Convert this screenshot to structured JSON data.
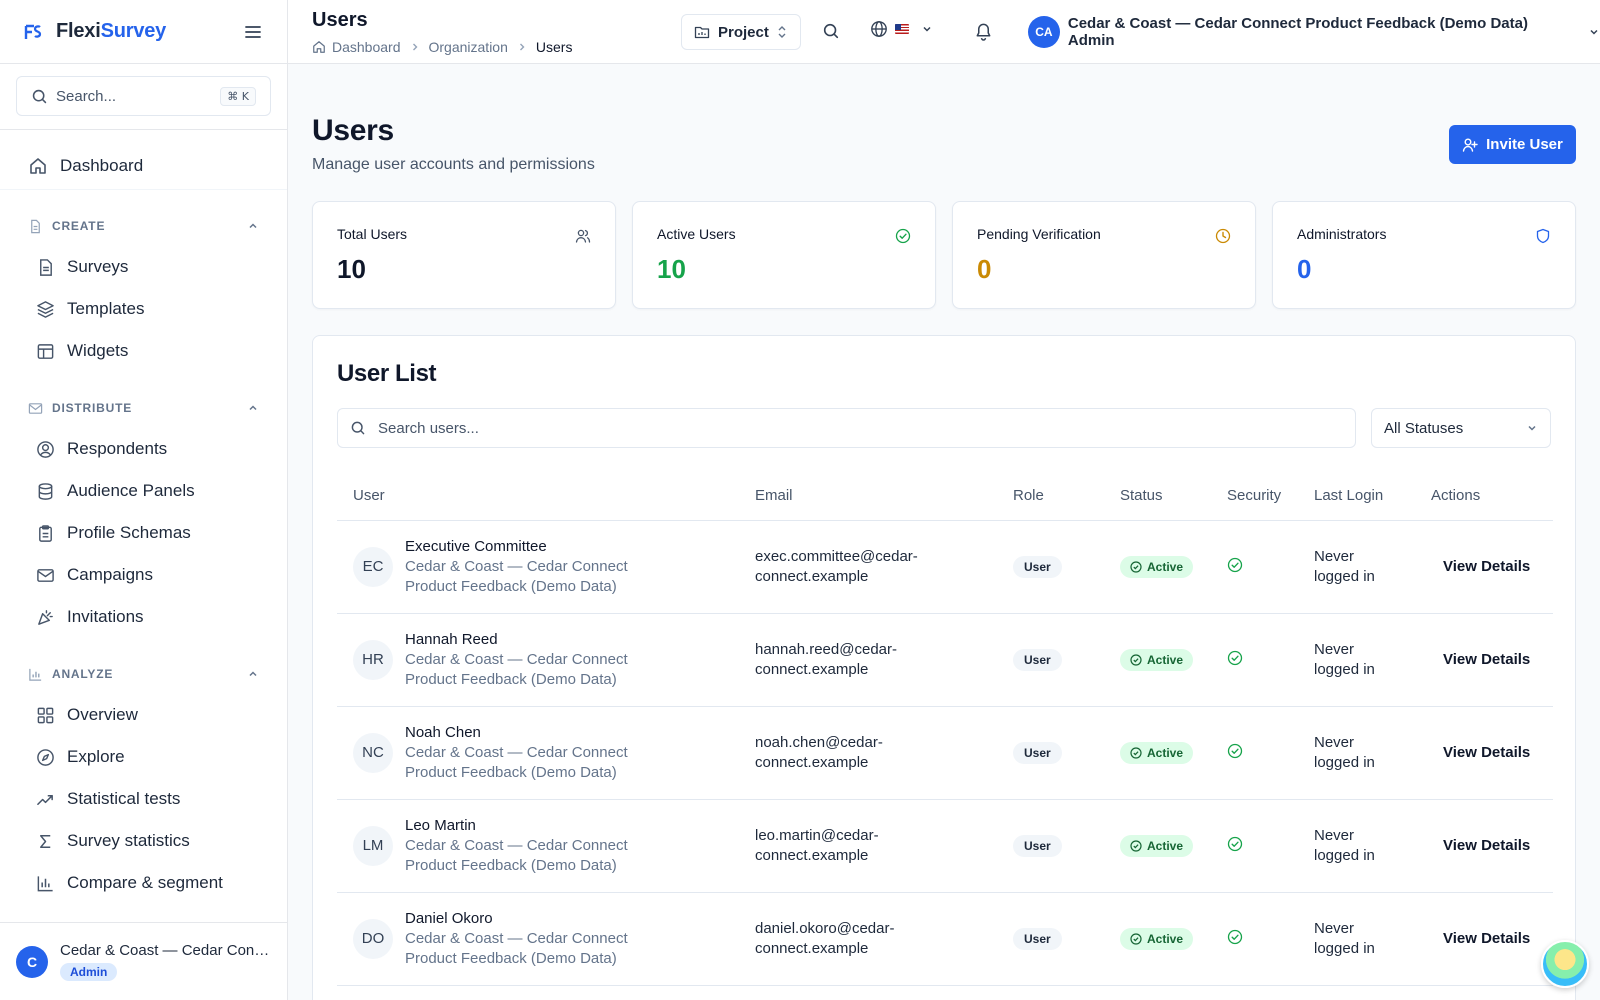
{
  "brand": {
    "name_a": "Flexi",
    "name_b": "Survey"
  },
  "sidebar": {
    "search_placeholder": "Search...",
    "search_shortcut": "⌘ K",
    "dashboard": "Dashboard",
    "sections": [
      {
        "title": "CREATE",
        "items": [
          "Surveys",
          "Templates",
          "Widgets"
        ]
      },
      {
        "title": "DISTRIBUTE",
        "items": [
          "Respondents",
          "Audience Panels",
          "Profile Schemas",
          "Campaigns",
          "Invitations"
        ]
      },
      {
        "title": "ANALYZE",
        "items": [
          "Overview",
          "Explore",
          "Statistical tests",
          "Survey statistics",
          "Compare & segment"
        ]
      }
    ],
    "footer": {
      "initial": "C",
      "name": "Cedar & Coast — Cedar Connect Product Feedback (Demo Data)",
      "badge": "Admin"
    }
  },
  "header": {
    "title": "Users",
    "breadcrumbs": [
      "Dashboard",
      "Organization",
      "Users"
    ],
    "project_label": "Project",
    "user_initials": "CA",
    "user_name": "Cedar & Coast — Cedar Connect Product Feedback (Demo Data) Admin"
  },
  "page": {
    "title": "Users",
    "subtitle": "Manage user accounts and permissions",
    "invite_label": "Invite User"
  },
  "stats": [
    {
      "label": "Total Users",
      "value": "10",
      "color": "#0f172a",
      "icon": "users-icon"
    },
    {
      "label": "Active Users",
      "value": "10",
      "color": "#16a34a",
      "icon": "check-circle-icon"
    },
    {
      "label": "Pending Verification",
      "value": "0",
      "color": "#ca8a04",
      "icon": "clock-icon"
    },
    {
      "label": "Administrators",
      "value": "0",
      "color": "#2563eb",
      "icon": "shield-icon"
    }
  ],
  "user_list": {
    "title": "User List",
    "search_placeholder": "Search users...",
    "status_filter": "All Statuses",
    "columns": [
      "User",
      "Email",
      "Role",
      "Status",
      "Security",
      "Last Login",
      "Actions"
    ],
    "rows": [
      {
        "initials": "EC",
        "name": "Executive Committee",
        "org": "Cedar & Coast — Cedar Connect Product Feedback (Demo Data)",
        "email": "exec.committee@cedar-connect.example",
        "role": "User",
        "status": "Active",
        "last_login": "Never logged in",
        "action": "View Details"
      },
      {
        "initials": "HR",
        "name": "Hannah Reed",
        "org": "Cedar & Coast — Cedar Connect Product Feedback (Demo Data)",
        "email": "hannah.reed@cedar-connect.example",
        "role": "User",
        "status": "Active",
        "last_login": "Never logged in",
        "action": "View Details"
      },
      {
        "initials": "NC",
        "name": "Noah Chen",
        "org": "Cedar & Coast — Cedar Connect Product Feedback (Demo Data)",
        "email": "noah.chen@cedar-connect.example",
        "role": "User",
        "status": "Active",
        "last_login": "Never logged in",
        "action": "View Details"
      },
      {
        "initials": "LM",
        "name": "Leo Martin",
        "org": "Cedar & Coast — Cedar Connect Product Feedback (Demo Data)",
        "email": "leo.martin@cedar-connect.example",
        "role": "User",
        "status": "Active",
        "last_login": "Never logged in",
        "action": "View Details"
      },
      {
        "initials": "DO",
        "name": "Daniel Okoro",
        "org": "Cedar & Coast — Cedar Connect Product Feedback (Demo Data)",
        "email": "daniel.okoro@cedar-connect.example",
        "role": "User",
        "status": "Active",
        "last_login": "Never logged in",
        "action": "View Details"
      }
    ]
  }
}
